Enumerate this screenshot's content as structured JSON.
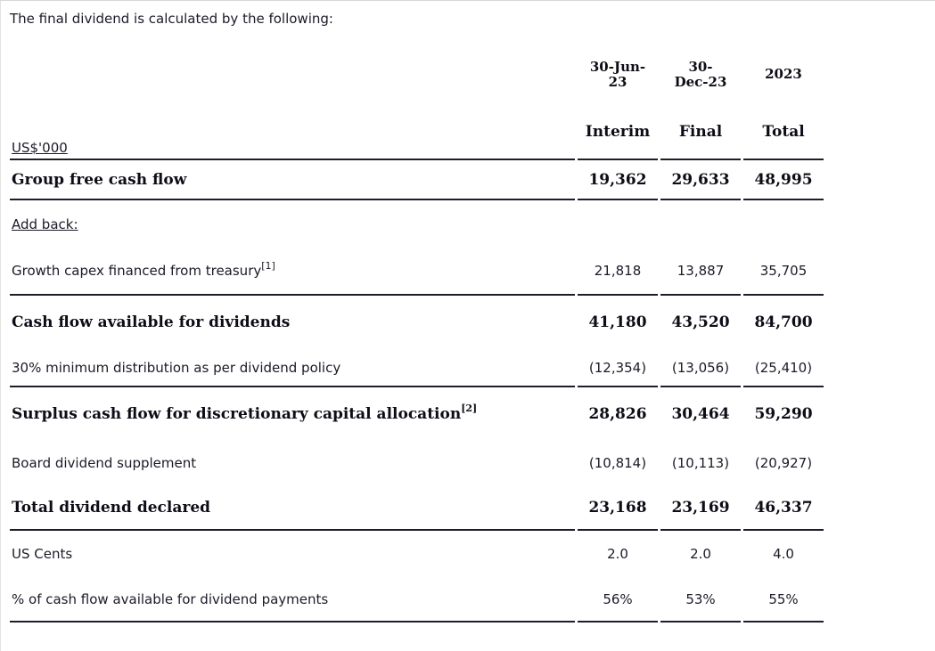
{
  "page": {
    "intro": "The final dividend is calculated by the following:"
  },
  "table": {
    "unit_label": "US$'000",
    "columns": [
      {
        "date": "30-Jun-\n23",
        "period": "Interim"
      },
      {
        "date": "30-\nDec-23",
        "period": "Final"
      },
      {
        "date": "2023",
        "period": "Total"
      }
    ],
    "rows": [
      {
        "label": "Group free cash flow",
        "values": [
          "19,362",
          "29,633",
          "48,995"
        ]
      },
      {
        "label": "Add back:",
        "values": [
          "",
          "",
          ""
        ]
      },
      {
        "label": "Growth capex financed from treasury",
        "sup": "[1]",
        "values": [
          "21,818",
          "13,887",
          "35,705"
        ]
      },
      {
        "label": "Cash flow available for dividends",
        "values": [
          "41,180",
          "43,520",
          "84,700"
        ]
      },
      {
        "label": "30% minimum distribution as per dividend policy",
        "values": [
          "(12,354)",
          "(13,056)",
          "(25,410)"
        ]
      },
      {
        "label": "Surplus cash flow for discretionary capital allocation",
        "sup": "[2]",
        "values": [
          "28,826",
          "30,464",
          "59,290"
        ]
      },
      {
        "label": "Board dividend supplement",
        "values": [
          "(10,814)",
          "(10,113)",
          "(20,927)"
        ]
      },
      {
        "label": "Total dividend declared",
        "values": [
          "23,168",
          "23,169",
          "46,337"
        ]
      },
      {
        "label": "US Cents",
        "values": [
          "2.0",
          "2.0",
          "4.0"
        ]
      },
      {
        "label": "% of cash flow available for dividend payments",
        "values": [
          "56%",
          "53%",
          "55%"
        ]
      }
    ],
    "colors": {
      "text": "#1b1b29",
      "emphasis_text": "#0d0d17",
      "rule": "#1d1d2b",
      "page_border": "#d6d6d6"
    }
  }
}
